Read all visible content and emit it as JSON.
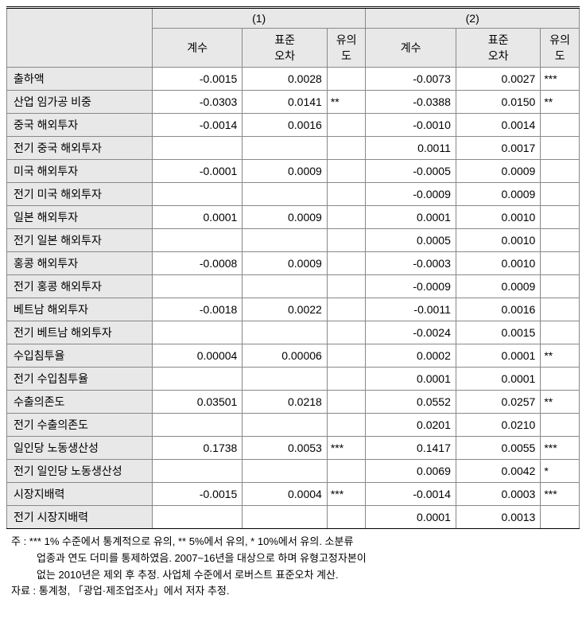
{
  "header": {
    "empty": "",
    "model1": "(1)",
    "model2": "(2)",
    "coef": "계수",
    "se": "표준\n오차",
    "sig": "유의\n도"
  },
  "rows": [
    {
      "label": "출하액",
      "c1": "-0.0015",
      "s1": "0.0028",
      "g1": "",
      "c2": "-0.0073",
      "s2": "0.0027",
      "g2": "***"
    },
    {
      "label": "산업 임가공 비중",
      "c1": "-0.0303",
      "s1": "0.0141",
      "g1": "**",
      "c2": "-0.0388",
      "s2": "0.0150",
      "g2": "**"
    },
    {
      "label": "중국 해외투자",
      "c1": "-0.0014",
      "s1": "0.0016",
      "g1": "",
      "c2": "-0.0010",
      "s2": "0.0014",
      "g2": ""
    },
    {
      "label": "전기 중국 해외투자",
      "c1": "",
      "s1": "",
      "g1": "",
      "c2": "0.0011",
      "s2": "0.0017",
      "g2": ""
    },
    {
      "label": "미국 해외투자",
      "c1": "-0.0001",
      "s1": "0.0009",
      "g1": "",
      "c2": "-0.0005",
      "s2": "0.0009",
      "g2": ""
    },
    {
      "label": "전기 미국 해외투자",
      "c1": "",
      "s1": "",
      "g1": "",
      "c2": "-0.0009",
      "s2": "0.0009",
      "g2": ""
    },
    {
      "label": "일본 해외투자",
      "c1": "0.0001",
      "s1": "0.0009",
      "g1": "",
      "c2": "0.0001",
      "s2": "0.0010",
      "g2": ""
    },
    {
      "label": "전기 일본 해외투자",
      "c1": "",
      "s1": "",
      "g1": "",
      "c2": "0.0005",
      "s2": "0.0010",
      "g2": ""
    },
    {
      "label": "홍콩 해외투자",
      "c1": "-0.0008",
      "s1": "0.0009",
      "g1": "",
      "c2": "-0.0003",
      "s2": "0.0010",
      "g2": ""
    },
    {
      "label": "전기 홍콩 해외투자",
      "c1": "",
      "s1": "",
      "g1": "",
      "c2": "-0.0009",
      "s2": "0.0009",
      "g2": ""
    },
    {
      "label": "베트남 해외투자",
      "c1": "-0.0018",
      "s1": "0.0022",
      "g1": "",
      "c2": "-0.0011",
      "s2": "0.0016",
      "g2": ""
    },
    {
      "label": "전기 베트남 해외투자",
      "c1": "",
      "s1": "",
      "g1": "",
      "c2": "-0.0024",
      "s2": "0.0015",
      "g2": ""
    },
    {
      "label": "수입침투율",
      "c1": "0.00004",
      "s1": "0.00006",
      "g1": "",
      "c2": "0.0002",
      "s2": "0.0001",
      "g2": "**"
    },
    {
      "label": "전기 수입침투율",
      "c1": "",
      "s1": "",
      "g1": "",
      "c2": "0.0001",
      "s2": "0.0001",
      "g2": ""
    },
    {
      "label": "수출의존도",
      "c1": "0.03501",
      "s1": "0.0218",
      "g1": "",
      "c2": "0.0552",
      "s2": "0.0257",
      "g2": "**"
    },
    {
      "label": "전기 수출의존도",
      "c1": "",
      "s1": "",
      "g1": "",
      "c2": "0.0201",
      "s2": "0.0210",
      "g2": ""
    },
    {
      "label": "일인당 노동생산성",
      "c1": "0.1738",
      "s1": "0.0053",
      "g1": "***",
      "c2": "0.1417",
      "s2": "0.0055",
      "g2": "***"
    },
    {
      "label": "전기 일인당 노동생산성",
      "c1": "",
      "s1": "",
      "g1": "",
      "c2": "0.0069",
      "s2": "0.0042",
      "g2": "*"
    },
    {
      "label": "시장지배력",
      "c1": "-0.0015",
      "s1": "0.0004",
      "g1": "***",
      "c2": "-0.0014",
      "s2": "0.0003",
      "g2": "***"
    },
    {
      "label": "전기 시장지배력",
      "c1": "",
      "s1": "",
      "g1": "",
      "c2": "0.0001",
      "s2": "0.0013",
      "g2": ""
    }
  ],
  "notes": {
    "line1": "주 : *** 1% 수준에서 통계적으로 유의, ** 5%에서 유의, * 10%에서 유의. 소분류",
    "line2": "업종과 연도 더미를 통제하였음. 2007~16년을 대상으로 하며 유형고정자본이",
    "line3": "없는 2010년은 제외 후 추정. 사업체 수준에서 로버스트 표준오차 계산.",
    "line4": "자료 : 통계청, 「광업·제조업조사」에서 저자 추정."
  },
  "style": {
    "table_border_color": "#888888",
    "header_bg": "#e8e8e8",
    "cell_bg": "#ffffff",
    "top_border": "double 3px #000000",
    "font_size": 14,
    "notes_font_size": 13
  }
}
